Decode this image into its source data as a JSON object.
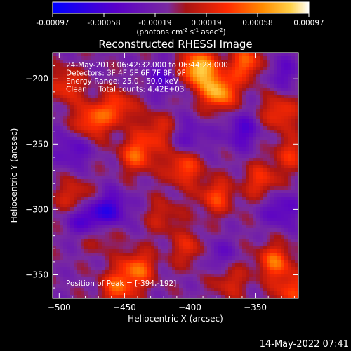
{
  "colorbar": {
    "ticks": [
      "-0.00097",
      "-0.00058",
      "-0.00019",
      "0.00019",
      "0.00058",
      "0.00097"
    ],
    "units_main": "(photons cm",
    "units_exp1": "-2",
    "units_mid": " s",
    "units_exp2": "-1",
    "units_tail": " asec",
    "units_exp3": "-2",
    "units_close": ")",
    "colors": [
      "#0000ff",
      "#5a00c8",
      "#7a2aa0",
      "#a81414",
      "#ff2a00",
      "#ff8c00",
      "#ffd24a",
      "#ffffff"
    ]
  },
  "info_lines": [
    "24-May-2013 06:42:32.000 to 06:44:28.000",
    "Detectors: 3F 4F 5F 6F 7F 8F, 9F",
    "Energy Range: 25.0 - 50.0 keV",
    "Clean     Total counts: 4.42E+03"
  ],
  "peak_label": "Position of Peak = [-394,-192]",
  "footer_timestamp": "14-May-2022 07:41",
  "chart_data": {
    "type": "heatmap",
    "title": "Reconstructed RHESSI Image",
    "xlabel": "Heliocentric X (arcsec)",
    "ylabel": "Heliocentric Y (arcsec)",
    "xlim": [
      -505,
      -317
    ],
    "ylim": [
      -368,
      -180
    ],
    "xticks": [
      -500,
      -450,
      -400,
      -350
    ],
    "yticks": [
      -200,
      -250,
      -300,
      -350
    ],
    "colorbar_range": [
      -0.00097,
      0.00097
    ],
    "peak_position": [
      -394,
      -192
    ],
    "grid": false,
    "hotspots": [
      {
        "x": -394,
        "y": -192,
        "v": 0.00097
      },
      {
        "x": -378,
        "y": -210,
        "v": 0.00085
      },
      {
        "x": -357,
        "y": -188,
        "v": 0.0006
      },
      {
        "x": -331,
        "y": -226,
        "v": 0.0005
      },
      {
        "x": -475,
        "y": -232,
        "v": 0.0006
      },
      {
        "x": -455,
        "y": -222,
        "v": 0.0005
      },
      {
        "x": -440,
        "y": -258,
        "v": 0.0006
      },
      {
        "x": -425,
        "y": -240,
        "v": 0.0004
      },
      {
        "x": -405,
        "y": -268,
        "v": 0.00055
      },
      {
        "x": -380,
        "y": -290,
        "v": 0.0005
      },
      {
        "x": -345,
        "y": -278,
        "v": 0.00045
      },
      {
        "x": -322,
        "y": -258,
        "v": 0.0004
      },
      {
        "x": -488,
        "y": -290,
        "v": 0.0004
      },
      {
        "x": -470,
        "y": -318,
        "v": 0.00035
      },
      {
        "x": -440,
        "y": -345,
        "v": 0.0006
      },
      {
        "x": -455,
        "y": -360,
        "v": 0.00055
      },
      {
        "x": -400,
        "y": -330,
        "v": 0.0004
      },
      {
        "x": -370,
        "y": -355,
        "v": 0.00035
      },
      {
        "x": -335,
        "y": -340,
        "v": 0.0006
      },
      {
        "x": -322,
        "y": -362,
        "v": 0.0005
      },
      {
        "x": -495,
        "y": -205,
        "v": 0.00045
      },
      {
        "x": -420,
        "y": -305,
        "v": 0.0003
      }
    ],
    "coldspots": [
      {
        "x": -460,
        "y": -300,
        "v": -0.0005
      },
      {
        "x": -478,
        "y": -308,
        "v": -0.0006
      },
      {
        "x": -420,
        "y": -200,
        "v": -0.00035
      },
      {
        "x": -360,
        "y": -240,
        "v": -0.0004
      },
      {
        "x": -330,
        "y": -300,
        "v": -0.0004
      },
      {
        "x": -400,
        "y": -245,
        "v": -0.0003
      },
      {
        "x": -490,
        "y": -255,
        "v": -0.00035
      },
      {
        "x": -380,
        "y": -335,
        "v": -0.0003
      },
      {
        "x": -330,
        "y": -195,
        "v": -0.0003
      }
    ]
  }
}
